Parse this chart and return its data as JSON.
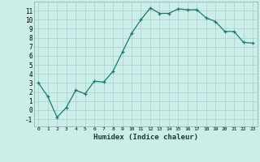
{
  "x": [
    0,
    1,
    2,
    3,
    4,
    5,
    6,
    7,
    8,
    9,
    10,
    11,
    12,
    13,
    14,
    15,
    16,
    17,
    18,
    19,
    20,
    21,
    22,
    23
  ],
  "y": [
    3,
    1.5,
    -0.8,
    0.3,
    2.2,
    1.8,
    3.2,
    3.1,
    4.3,
    6.4,
    8.5,
    10.0,
    11.3,
    10.7,
    10.7,
    11.2,
    11.1,
    11.1,
    10.2,
    9.8,
    8.7,
    8.7,
    7.5,
    7.4
  ],
  "xlabel": "Humidex (Indice chaleur)",
  "xlim": [
    -0.5,
    23.5
  ],
  "ylim": [
    -1.8,
    12.0
  ],
  "yticks": [
    -1,
    0,
    1,
    2,
    3,
    4,
    5,
    6,
    7,
    8,
    9,
    10,
    11
  ],
  "xticks": [
    0,
    1,
    2,
    3,
    4,
    5,
    6,
    7,
    8,
    9,
    10,
    11,
    12,
    13,
    14,
    15,
    16,
    17,
    18,
    19,
    20,
    21,
    22,
    23
  ],
  "line_color": "#1a7a6e",
  "bg_color": "#cceee8",
  "grid_color": "#aacccc"
}
